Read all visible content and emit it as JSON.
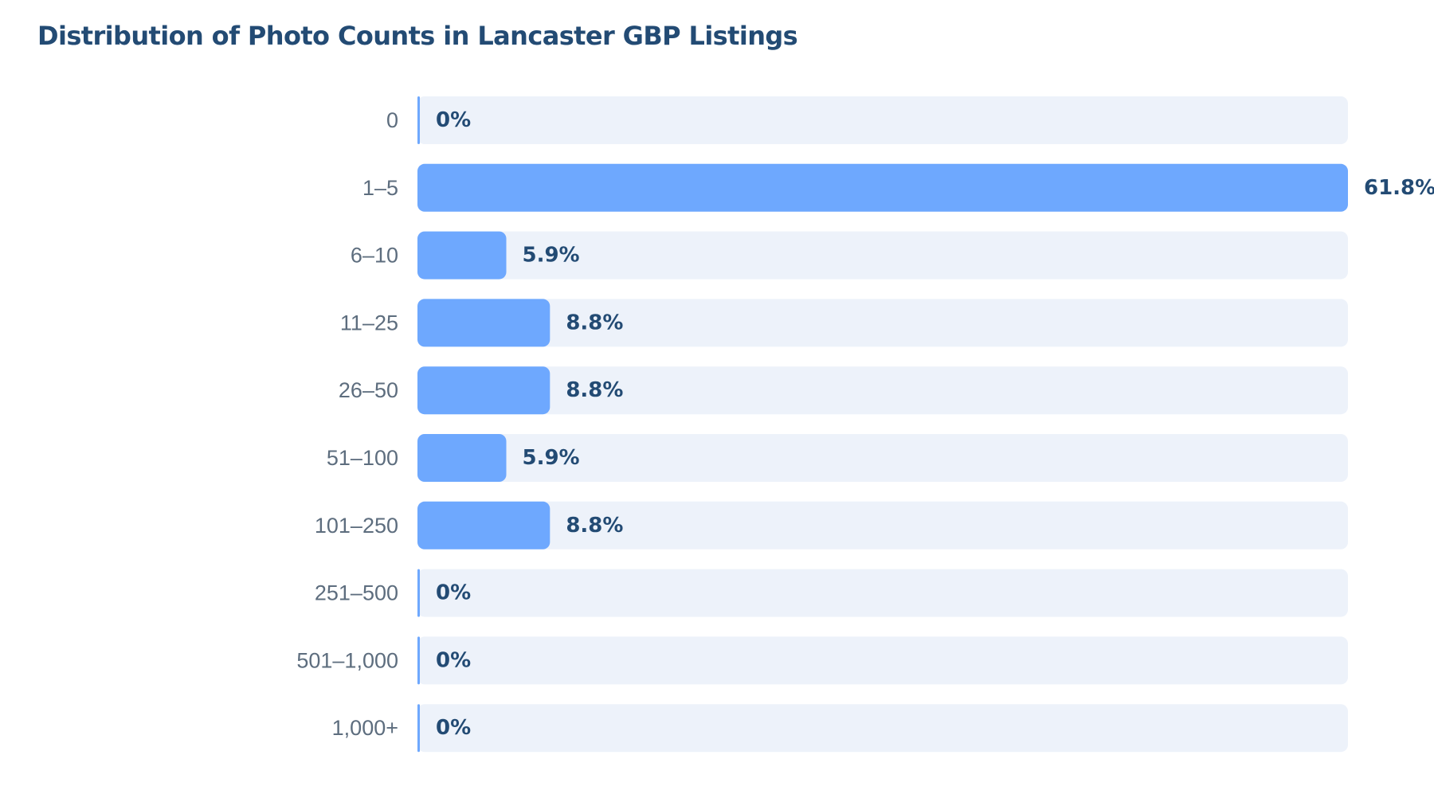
{
  "title": "Distribution of Photo Counts in Lancaster GBP Listings",
  "colors": {
    "bar": "#6ea8fe",
    "track": "#edf2fa",
    "value_text": "#234b74",
    "category_text": "#5d6d7e",
    "title": "#234b74"
  },
  "chart_data": {
    "type": "bar",
    "orientation": "horizontal",
    "title": "Distribution of Photo Counts in Lancaster GBP Listings",
    "categories": [
      "0",
      "1–5",
      "6–10",
      "11–25",
      "26–50",
      "51–100",
      "101–250",
      "251–500",
      "501–1,000",
      "1,000+"
    ],
    "values": [
      0,
      61.8,
      5.9,
      8.8,
      8.8,
      5.9,
      8.8,
      0,
      0,
      0
    ],
    "value_labels": [
      "0%",
      "61.8%",
      "5.9%",
      "8.8%",
      "8.8%",
      "5.9%",
      "8.8%",
      "0%",
      "0%",
      "0%"
    ],
    "xlim": [
      0,
      61.8
    ],
    "xlabel": "",
    "ylabel": "",
    "grid": false,
    "legend": "none"
  }
}
